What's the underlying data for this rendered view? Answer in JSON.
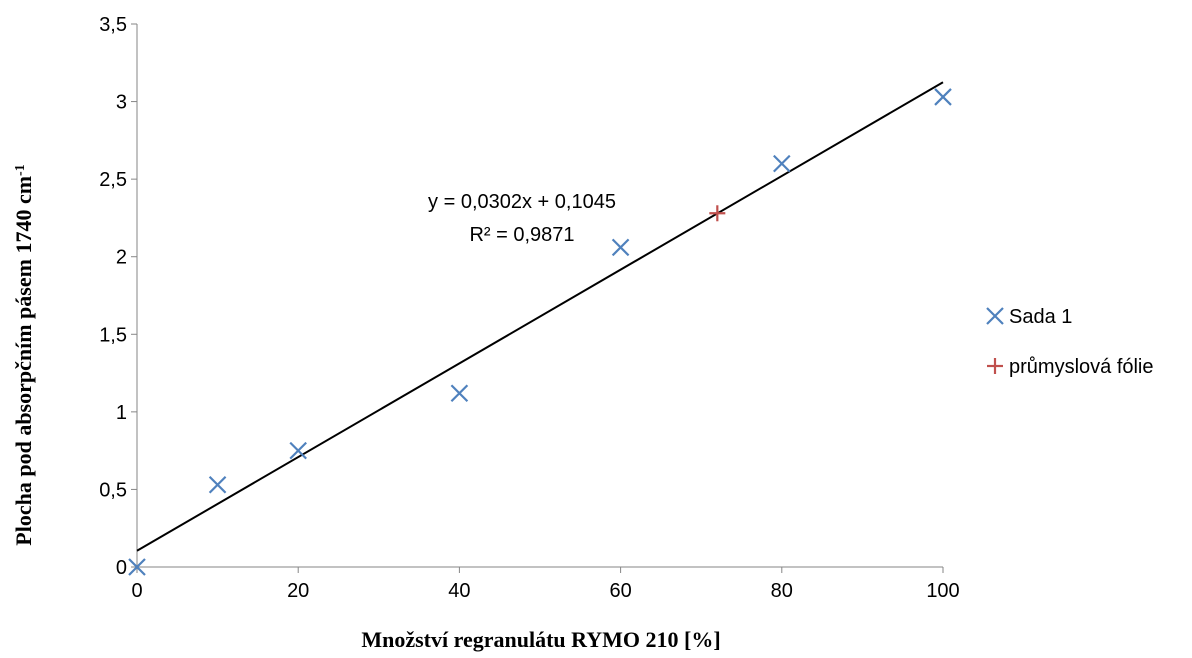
{
  "chart_data": {
    "type": "scatter",
    "xlabel": "Množství regranulátu RYMO 210 [%]",
    "ylabel_main": "Plocha pod absorpčním pásem 1740 cm",
    "ylabel_sup": "-1",
    "xlim": [
      0,
      100
    ],
    "ylim": [
      0,
      3.5
    ],
    "x_ticks": [
      0,
      20,
      40,
      60,
      80,
      100
    ],
    "x_tick_labels": [
      "0",
      "20",
      "40",
      "60",
      "80",
      "100"
    ],
    "y_ticks": [
      0,
      0.5,
      1,
      1.5,
      2,
      2.5,
      3,
      3.5
    ],
    "y_tick_labels": [
      "0",
      "0,5",
      "1",
      "1,5",
      "2",
      "2,5",
      "3",
      "3,5"
    ],
    "grid": false,
    "legend_position": "right",
    "series": [
      {
        "name": "Sada 1",
        "marker": "x",
        "color": "#4f81bd",
        "x": [
          0,
          10,
          20,
          40,
          60,
          80,
          100
        ],
        "y": [
          0,
          0.53,
          0.75,
          1.12,
          2.06,
          2.6,
          3.03
        ]
      },
      {
        "name": "průmyslová fólie",
        "marker": "+",
        "color": "#c0504d",
        "x": [
          72
        ],
        "y": [
          2.28
        ]
      }
    ],
    "trendline": {
      "slope": 0.0302,
      "intercept": 0.1045,
      "x_range": [
        0,
        100
      ],
      "color": "#000000",
      "equation_label": "y = 0,0302x + 0,1045",
      "r2_label": "R² = 0,9871"
    }
  }
}
